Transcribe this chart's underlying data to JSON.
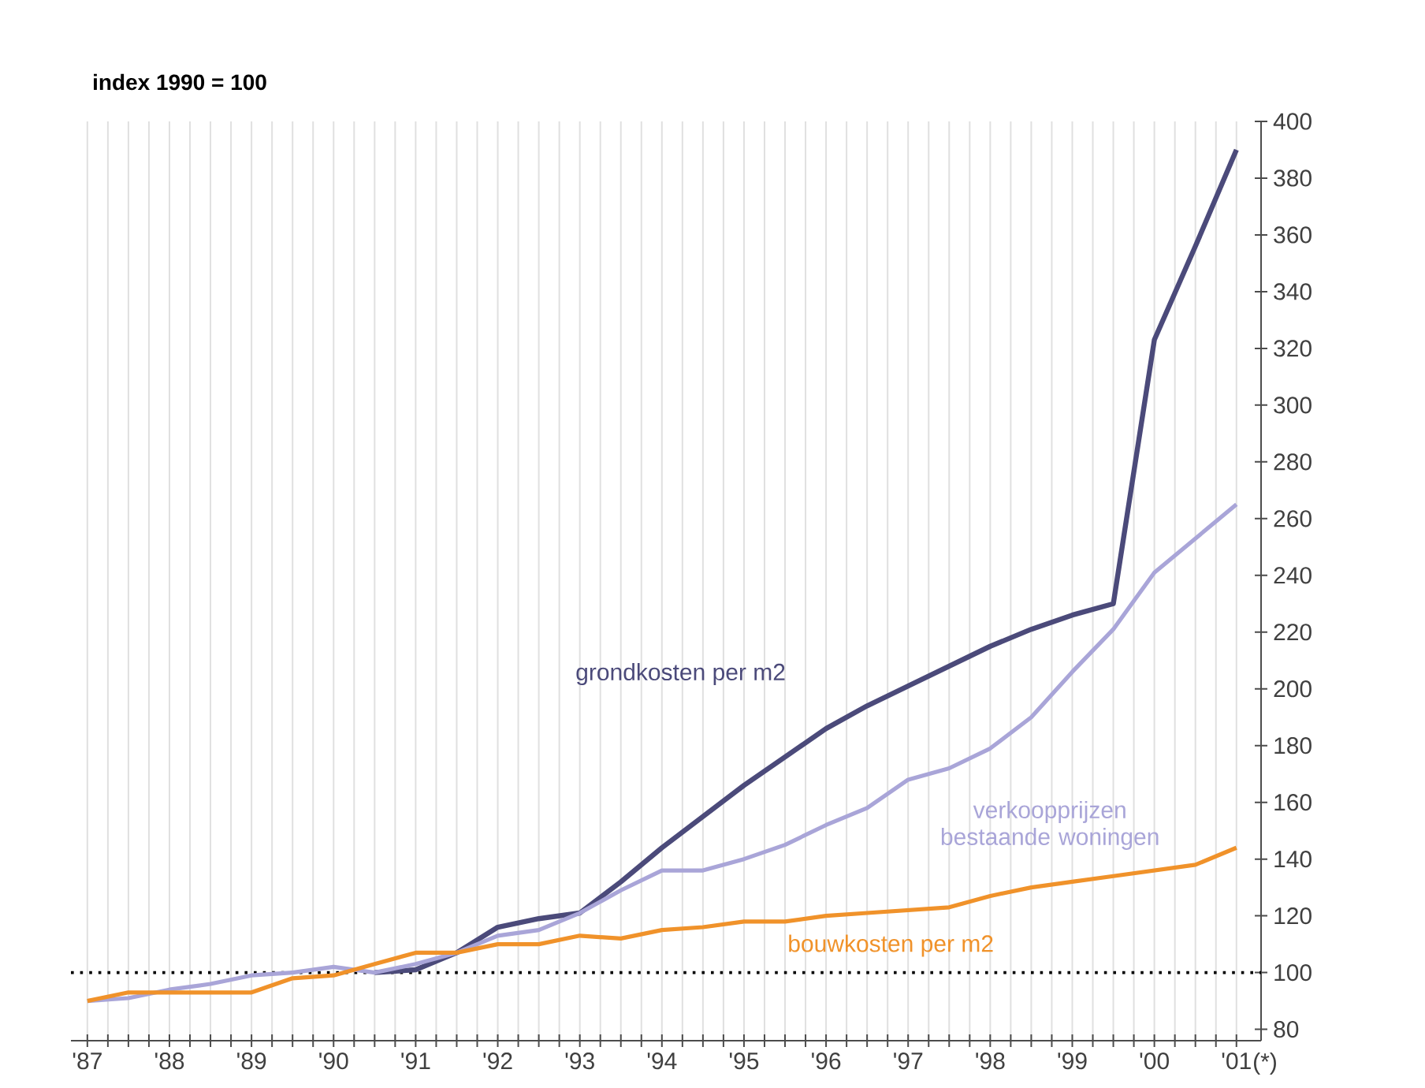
{
  "chart_data": {
    "type": "line",
    "title": "index 1990 = 100",
    "x": [
      1987,
      1987.5,
      1988,
      1988.5,
      1989,
      1989.5,
      1990,
      1990.5,
      1991,
      1991.5,
      1992,
      1992.5,
      1993,
      1993.5,
      1994,
      1994.5,
      1995,
      1995.5,
      1996,
      1996.5,
      1997,
      1997.5,
      1998,
      1998.5,
      1999,
      1999.5,
      2000,
      2000.5,
      2001
    ],
    "series": [
      {
        "name": "grondkosten per m2",
        "color": "#4b4a7a",
        "values": [
          null,
          null,
          null,
          null,
          null,
          null,
          null,
          100,
          101,
          107,
          116,
          119,
          121,
          132,
          144,
          155,
          166,
          176,
          186,
          194,
          201,
          208,
          215,
          221,
          226,
          230,
          323,
          356,
          390
        ]
      },
      {
        "name": "verkoopprijzen bestaande woningen",
        "color": "#a9a5d8",
        "values": [
          90,
          91,
          94,
          96,
          99,
          100,
          102,
          100,
          103,
          107,
          113,
          115,
          121,
          129,
          136,
          136,
          140,
          145,
          152,
          158,
          168,
          172,
          179,
          190,
          206,
          221,
          241,
          253,
          265
        ]
      },
      {
        "name": "bouwkosten per m2",
        "color": "#f0922a",
        "values": [
          90,
          93,
          93,
          93,
          93,
          98,
          99,
          103,
          107,
          107,
          110,
          110,
          113,
          112,
          115,
          116,
          118,
          118,
          120,
          121,
          122,
          123,
          127,
          130,
          132,
          134,
          136,
          138,
          144
        ]
      }
    ],
    "xlim": [
      1986.8,
      2001.3
    ],
    "xticks": [
      {
        "value": 1987,
        "label": "'87"
      },
      {
        "value": 1987.25,
        "label": null
      },
      {
        "value": 1987.5,
        "label": null
      },
      {
        "value": 1987.75,
        "label": null
      },
      {
        "value": 1988,
        "label": "'88"
      },
      {
        "value": 1988.25,
        "label": null
      },
      {
        "value": 1988.5,
        "label": null
      },
      {
        "value": 1988.75,
        "label": null
      },
      {
        "value": 1989,
        "label": "'89"
      },
      {
        "value": 1989.25,
        "label": null
      },
      {
        "value": 1989.5,
        "label": null
      },
      {
        "value": 1989.75,
        "label": null
      },
      {
        "value": 1990,
        "label": "'90"
      },
      {
        "value": 1990.25,
        "label": null
      },
      {
        "value": 1990.5,
        "label": null
      },
      {
        "value": 1990.75,
        "label": null
      },
      {
        "value": 1991,
        "label": "'91"
      },
      {
        "value": 1991.25,
        "label": null
      },
      {
        "value": 1991.5,
        "label": null
      },
      {
        "value": 1991.75,
        "label": null
      },
      {
        "value": 1992,
        "label": "'92"
      },
      {
        "value": 1992.25,
        "label": null
      },
      {
        "value": 1992.5,
        "label": null
      },
      {
        "value": 1992.75,
        "label": null
      },
      {
        "value": 1993,
        "label": "'93"
      },
      {
        "value": 1993.25,
        "label": null
      },
      {
        "value": 1993.5,
        "label": null
      },
      {
        "value": 1993.75,
        "label": null
      },
      {
        "value": 1994,
        "label": "'94"
      },
      {
        "value": 1994.25,
        "label": null
      },
      {
        "value": 1994.5,
        "label": null
      },
      {
        "value": 1994.75,
        "label": null
      },
      {
        "value": 1995,
        "label": "'95"
      },
      {
        "value": 1995.25,
        "label": null
      },
      {
        "value": 1995.5,
        "label": null
      },
      {
        "value": 1995.75,
        "label": null
      },
      {
        "value": 1996,
        "label": "'96"
      },
      {
        "value": 1996.25,
        "label": null
      },
      {
        "value": 1996.5,
        "label": null
      },
      {
        "value": 1996.75,
        "label": null
      },
      {
        "value": 1997,
        "label": "'97"
      },
      {
        "value": 1997.25,
        "label": null
      },
      {
        "value": 1997.5,
        "label": null
      },
      {
        "value": 1997.75,
        "label": null
      },
      {
        "value": 1998,
        "label": "'98"
      },
      {
        "value": 1998.25,
        "label": null
      },
      {
        "value": 1998.5,
        "label": null
      },
      {
        "value": 1998.75,
        "label": null
      },
      {
        "value": 1999,
        "label": "'99"
      },
      {
        "value": 1999.25,
        "label": null
      },
      {
        "value": 1999.5,
        "label": null
      },
      {
        "value": 1999.75,
        "label": null
      },
      {
        "value": 2000,
        "label": "'00"
      },
      {
        "value": 2000.25,
        "label": null
      },
      {
        "value": 2000.5,
        "label": null
      },
      {
        "value": 2000.75,
        "label": null
      },
      {
        "value": 2001,
        "label": "'01"
      }
    ],
    "annotations": [
      "(*)"
    ],
    "ylim": [
      76,
      400
    ],
    "yticks": [
      80,
      100,
      120,
      140,
      160,
      180,
      200,
      220,
      240,
      260,
      280,
      300,
      320,
      340,
      360,
      380,
      400
    ],
    "grid": "x",
    "line_style": "solid",
    "ref_lines": [
      {
        "axis": "y",
        "value": 100,
        "color": "#000000",
        "line_style": "dotted"
      }
    ]
  }
}
